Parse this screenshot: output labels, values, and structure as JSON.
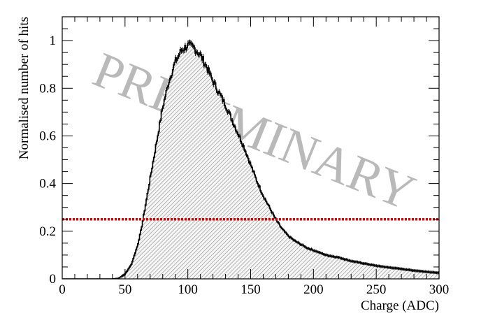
{
  "chart_data": {
    "type": "histogram",
    "xlabel": "Charge (ADC)",
    "ylabel": "Normalised number of hits",
    "xlim": [
      0,
      300
    ],
    "ylim": [
      0,
      1.1
    ],
    "x_ticks": [
      "0",
      "50",
      "100",
      "150",
      "200",
      "250",
      "300"
    ],
    "y_ticks": [
      "0",
      "0.2",
      "0.4",
      "0.6",
      "0.8",
      "1"
    ],
    "watermark": "PRELIMINARY",
    "threshold_line": {
      "y": 0.25,
      "color": "#dd0000",
      "style": "dotted"
    },
    "series": [
      {
        "fill": "hatched-gray",
        "points": [
          [
            0,
            0
          ],
          [
            40,
            0
          ],
          [
            45,
            0.003
          ],
          [
            50,
            0.02
          ],
          [
            55,
            0.06
          ],
          [
            60,
            0.14
          ],
          [
            63,
            0.21
          ],
          [
            66,
            0.3
          ],
          [
            70,
            0.42
          ],
          [
            75,
            0.57
          ],
          [
            80,
            0.72
          ],
          [
            85,
            0.83
          ],
          [
            90,
            0.91
          ],
          [
            95,
            0.96
          ],
          [
            100,
            0.98
          ],
          [
            105,
            0.97
          ],
          [
            110,
            0.94
          ],
          [
            115,
            0.89
          ],
          [
            120,
            0.83
          ],
          [
            125,
            0.78
          ],
          [
            130,
            0.73
          ],
          [
            135,
            0.67
          ],
          [
            140,
            0.61
          ],
          [
            145,
            0.55
          ],
          [
            150,
            0.48
          ],
          [
            155,
            0.41
          ],
          [
            160,
            0.35
          ],
          [
            165,
            0.3
          ],
          [
            170,
            0.25
          ],
          [
            175,
            0.21
          ],
          [
            180,
            0.18
          ],
          [
            185,
            0.16
          ],
          [
            190,
            0.145
          ],
          [
            195,
            0.13
          ],
          [
            200,
            0.12
          ],
          [
            210,
            0.1
          ],
          [
            220,
            0.09
          ],
          [
            230,
            0.075
          ],
          [
            240,
            0.065
          ],
          [
            250,
            0.055
          ],
          [
            260,
            0.048
          ],
          [
            270,
            0.042
          ],
          [
            280,
            0.035
          ],
          [
            290,
            0.03
          ],
          [
            300,
            0.025
          ]
        ]
      }
    ]
  }
}
